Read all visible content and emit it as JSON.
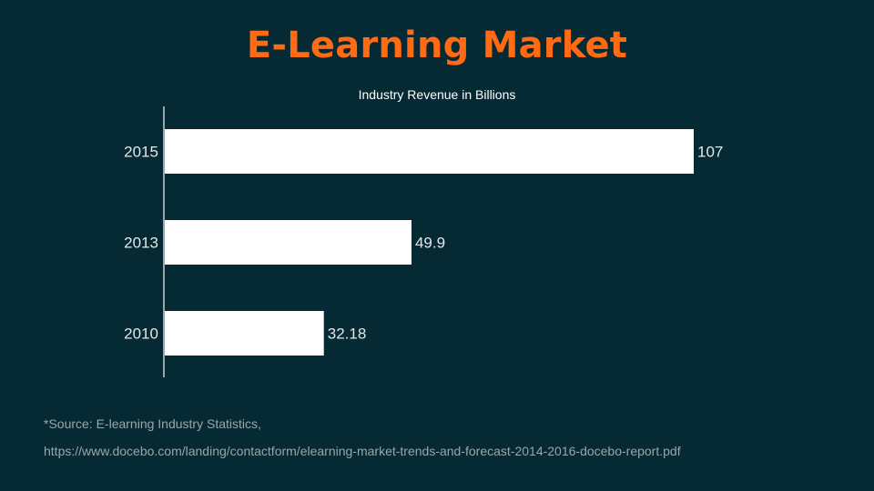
{
  "slide": {
    "title": "E-Learning Market",
    "source_line1": "*Source: E-learning Industry Statistics,",
    "source_line2": "https://www.docebo.com/landing/contactform/elearning-market-trends-and-forecast-2014-2016-docebo-report.pdf"
  },
  "colors": {
    "background": "#052a33",
    "title": "#ff6a13",
    "bar": "#ffffff",
    "text": "#e6e6e6",
    "source": "#9aa6aa"
  },
  "chart_data": {
    "type": "bar",
    "orientation": "horizontal",
    "title": "Industry Revenue in Billions",
    "xlabel": "",
    "ylabel": "",
    "categories": [
      "2015",
      "2013",
      "2010"
    ],
    "values": [
      107,
      49.9,
      32.18
    ],
    "value_labels": [
      "107",
      "49.9",
      "32.18"
    ],
    "xlim": [
      0,
      107
    ],
    "grid": false,
    "legend": "none"
  }
}
